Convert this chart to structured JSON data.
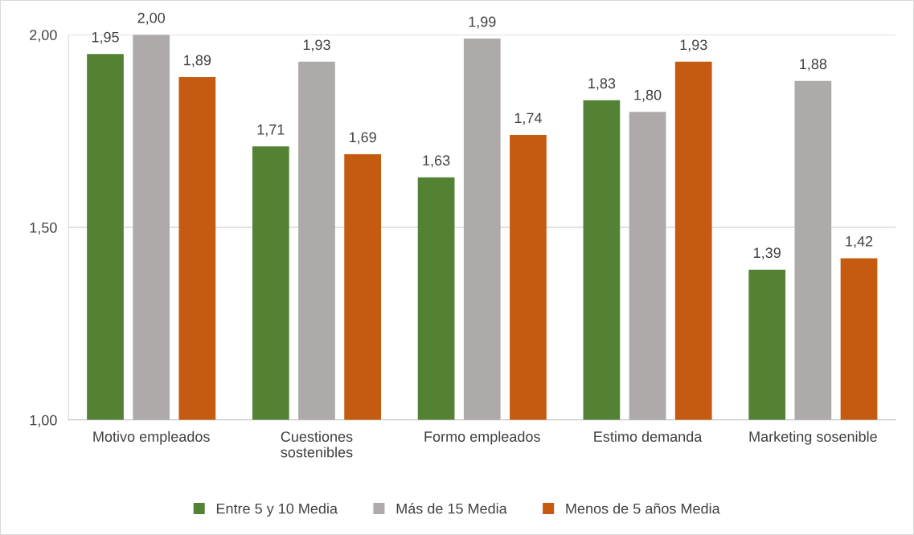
{
  "chart_data": {
    "type": "bar",
    "categories": [
      "Motivo empleados",
      "Cuestiones\nsostenibles",
      "Formo empleados",
      "Estimo demanda",
      "Marketing sosenible"
    ],
    "series": [
      {
        "name": "Entre 5 y 10 Media",
        "color": "#548235",
        "values": [
          1.95,
          1.71,
          1.63,
          1.83,
          1.39
        ],
        "value_labels": [
          "1,95",
          "1,71",
          "1,63",
          "1,83",
          "1,39"
        ]
      },
      {
        "name": "Más de 15 Media",
        "color": "#aeaaaa",
        "values": [
          2.0,
          1.93,
          1.99,
          1.8,
          1.88
        ],
        "value_labels": [
          "2,00",
          "1,93",
          "1,99",
          "1,80",
          "1,88"
        ]
      },
      {
        "name": "Menos de 5 años Media",
        "color": "#c55a11",
        "values": [
          1.89,
          1.69,
          1.74,
          1.93,
          1.42
        ],
        "value_labels": [
          "1,89",
          "1,69",
          "1,74",
          "1,93",
          "1,42"
        ]
      }
    ],
    "ylim": [
      1,
      2
    ],
    "yticks": [
      {
        "value": 1,
        "label": "1,00"
      },
      {
        "value": 1.5,
        "label": "1,50"
      },
      {
        "value": 2,
        "label": "2,00"
      }
    ],
    "grid": "y",
    "legend": "bottom"
  }
}
